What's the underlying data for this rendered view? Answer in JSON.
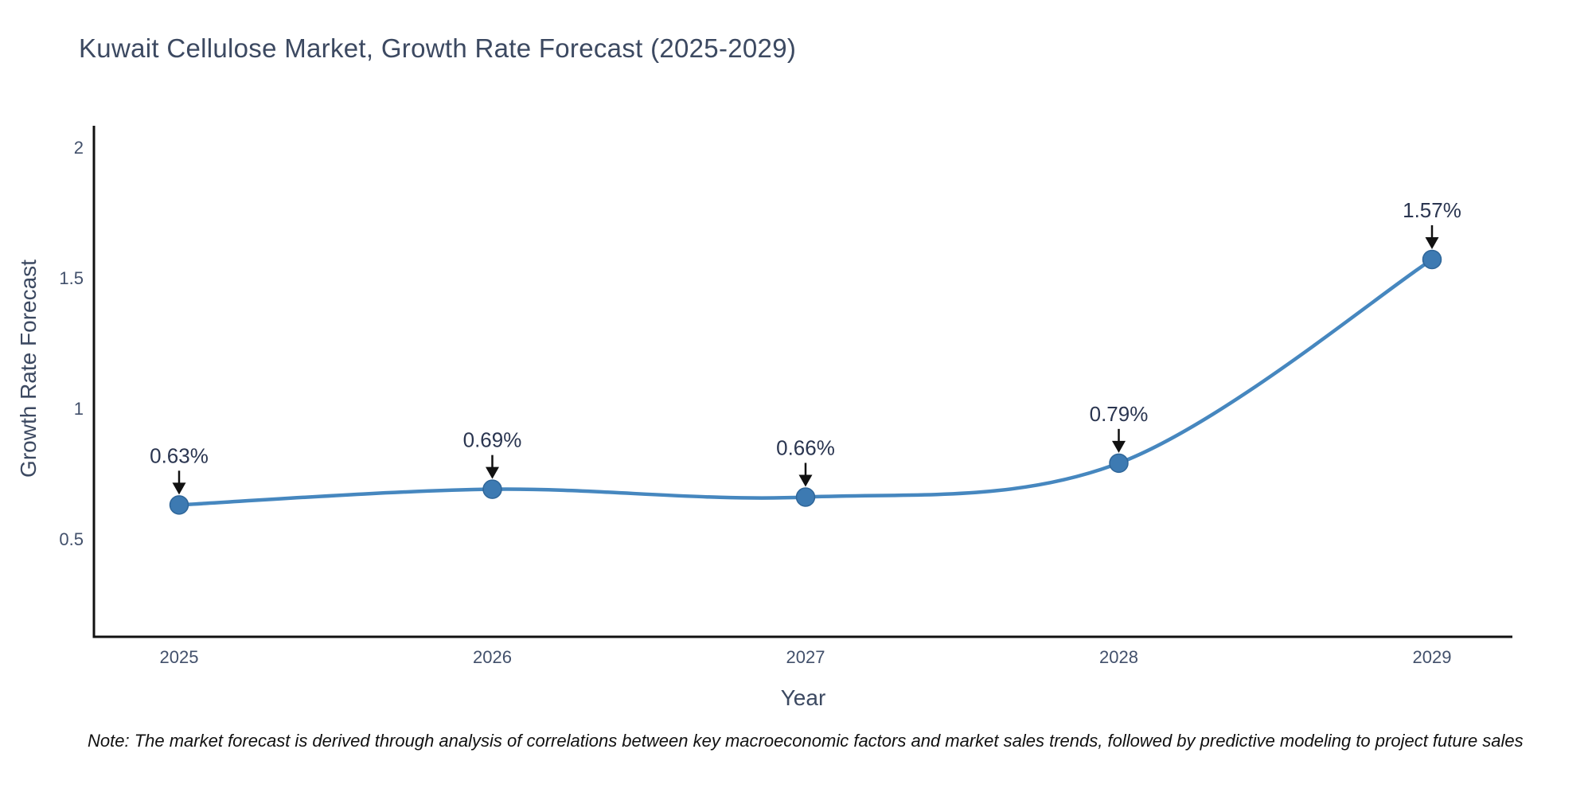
{
  "chart_data": {
    "type": "line",
    "title": "Kuwait Cellulose Market, Growth Rate Forecast (2025-2029)",
    "xlabel": "Year",
    "ylabel": "Growth Rate Forecast",
    "x": [
      2025,
      2026,
      2027,
      2028,
      2029
    ],
    "x_tick_labels": [
      "2025",
      "2026",
      "2027",
      "2028",
      "2029"
    ],
    "values": [
      0.63,
      0.69,
      0.66,
      0.79,
      1.57
    ],
    "point_labels": [
      "0.63%",
      "0.69%",
      "0.66%",
      "0.79%",
      "1.57%"
    ],
    "y_ticks": [
      0.5,
      1,
      1.5,
      2
    ],
    "y_tick_labels": [
      "0.5",
      "1",
      "1.5",
      "2"
    ],
    "ylim": [
      0.125,
      2.082
    ],
    "grid": false,
    "legend": "none",
    "line_shape": "spline",
    "line_color": "#4687bf",
    "marker_color": "#3d7ab2",
    "marker_edge_color": "#2f6699",
    "axis_color": "#111111",
    "annotation_arrow_color": "#111111",
    "annotation_text_color": "#2a3550",
    "title_color": "#3c4961"
  },
  "note": {
    "text": "Note: The market forecast is derived through analysis of correlations between key macroeconomic factors and market sales trends, followed by predictive modeling to project future sales"
  }
}
